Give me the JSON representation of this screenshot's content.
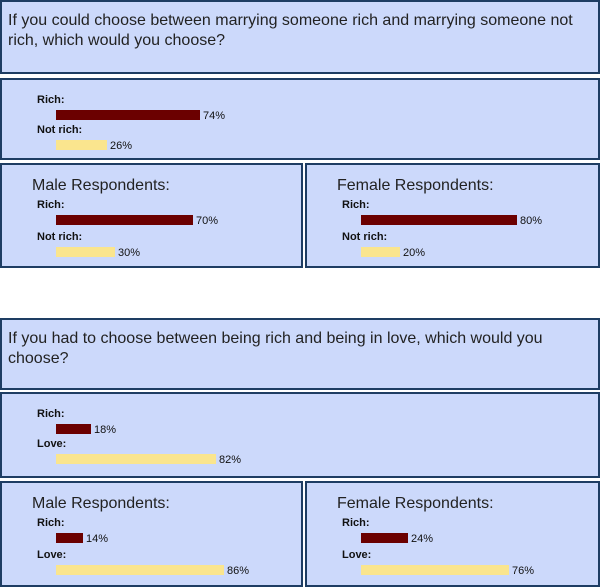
{
  "colors": {
    "rich": "#6b0000",
    "other": "#fae58e"
  },
  "sections": [
    {
      "question": "If you could choose between marrying someone rich and marrying someone not rich, which would you choose?",
      "overall": {
        "rows": [
          {
            "label": "Rich:",
            "value": 74,
            "text": "74%",
            "color": "rich"
          },
          {
            "label": "Not rich:",
            "value": 26,
            "text": "26%",
            "color": "other"
          }
        ]
      },
      "male": {
        "heading": "Male Respondents:",
        "rows": [
          {
            "label": "Rich:",
            "value": 70,
            "text": "70%",
            "color": "rich"
          },
          {
            "label": "Not rich:",
            "value": 30,
            "text": "30%",
            "color": "other"
          }
        ]
      },
      "female": {
        "heading": "Female Respondents:",
        "rows": [
          {
            "label": "Rich:",
            "value": 80,
            "text": "80%",
            "color": "rich"
          },
          {
            "label": "Not rich:",
            "value": 20,
            "text": "20%",
            "color": "other"
          }
        ]
      }
    },
    {
      "question": "If you had to choose between being rich and being in love, which would you choose?",
      "overall": {
        "rows": [
          {
            "label": "Rich:",
            "value": 18,
            "text": "18%",
            "color": "rich"
          },
          {
            "label": "Love:",
            "value": 82,
            "text": "82%",
            "color": "other"
          }
        ]
      },
      "male": {
        "heading": "Male Respondents:",
        "rows": [
          {
            "label": "Rich:",
            "value": 14,
            "text": "14%",
            "color": "rich"
          },
          {
            "label": "Love:",
            "value": 86,
            "text": "86%",
            "color": "other"
          }
        ]
      },
      "female": {
        "heading": "Female Respondents:",
        "rows": [
          {
            "label": "Rich:",
            "value": 24,
            "text": "24%",
            "color": "rich"
          },
          {
            "label": "Love:",
            "value": 76,
            "text": "76%",
            "color": "other"
          }
        ]
      }
    }
  ],
  "chart_data": [
    {
      "type": "bar",
      "title": "If you could choose between marrying someone rich and marrying someone not rich, which would you choose?",
      "categories": [
        "Rich:",
        "Not rich:"
      ],
      "series": [
        {
          "name": "",
          "values": [
            74,
            26
          ]
        },
        {
          "name": "Male Respondents:",
          "values": [
            70,
            30
          ]
        },
        {
          "name": "Female Respondents:",
          "values": [
            80,
            20
          ]
        }
      ]
    },
    {
      "type": "bar",
      "title": "If you had to choose between being rich and being in love, which would you choose?",
      "categories": [
        "Rich:",
        "Love:"
      ],
      "series": [
        {
          "name": "",
          "values": [
            18,
            82
          ]
        },
        {
          "name": "Male Respondents:",
          "values": [
            14,
            86
          ]
        },
        {
          "name": "Female Respondents:",
          "values": [
            24,
            76
          ]
        }
      ]
    }
  ]
}
